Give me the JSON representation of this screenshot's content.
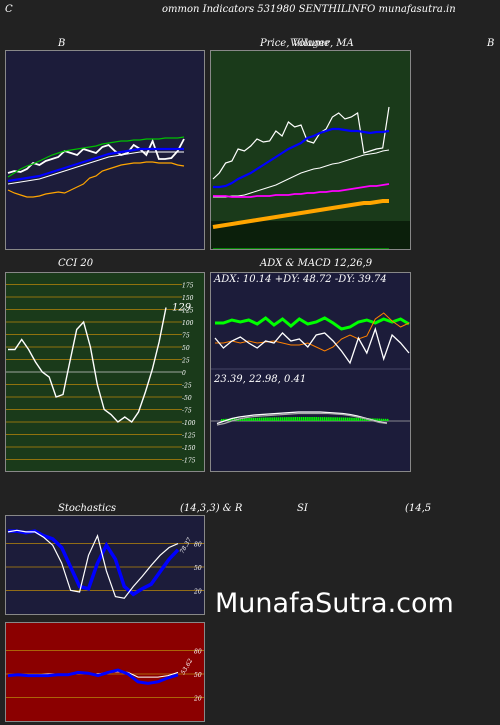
{
  "page": {
    "corner_letter": "C",
    "header": "ommon  Indicators 531980  SENTHILINFO munafasutra.in",
    "watermark": "MunafaSutra.com"
  },
  "colors": {
    "bg": "#222222",
    "navy": "#1c1c3a",
    "green_panel": "#1a3a1a",
    "red_panel": "#8b0000"
  },
  "chart_data": [
    {
      "type": "line",
      "id": "bollinger",
      "title": "B",
      "series": [
        {
          "color": "#ffffff",
          "values": [
            172,
            170,
            171,
            168,
            162,
            164,
            160,
            158,
            156,
            150,
            152,
            154,
            148,
            150,
            152,
            146,
            144,
            150,
            154,
            152,
            144,
            148,
            154,
            140,
            158,
            158,
            157,
            150,
            138
          ]
        },
        {
          "color": "#00c000",
          "values": [
            176,
            172,
            168,
            165,
            163,
            160,
            157,
            154,
            152,
            150,
            149,
            148,
            147,
            146,
            145,
            143,
            142,
            141,
            140,
            140,
            139,
            139,
            138,
            138,
            138,
            137,
            137,
            137,
            136
          ]
        },
        {
          "color": "#0000ff",
          "values": [
            180,
            179,
            178,
            177,
            176,
            175,
            173,
            171,
            169,
            167,
            165,
            163,
            161,
            159,
            157,
            155,
            153,
            152,
            151,
            150,
            149,
            148,
            148,
            148,
            148,
            148,
            148,
            148,
            148
          ]
        },
        {
          "color": "#ffffff",
          "values": [
            183,
            182,
            181,
            180,
            179,
            178,
            176,
            174,
            172,
            170,
            168,
            166,
            164,
            162,
            160,
            158,
            156,
            155,
            154,
            153,
            152,
            151,
            151,
            151,
            151,
            151,
            151,
            151,
            151
          ]
        },
        {
          "color": "#ffa500",
          "values": [
            189,
            192,
            194,
            196,
            196,
            195,
            193,
            192,
            191,
            192,
            189,
            186,
            183,
            177,
            175,
            170,
            168,
            166,
            164,
            163,
            162,
            162,
            161,
            161,
            162,
            162,
            162,
            164,
            165
          ]
        }
      ]
    },
    {
      "type": "line",
      "id": "price-volume-ma",
      "title": "Price,  Volume,  MA",
      "overlay_title": "Villager",
      "series": [
        {
          "color": "#ffffff",
          "values": [
            178,
            172,
            162,
            160,
            148,
            150,
            145,
            138,
            141,
            140,
            130,
            135,
            121,
            126,
            124,
            140,
            142,
            132,
            128,
            116,
            112,
            118,
            116,
            112,
            152,
            150,
            148,
            147,
            106
          ]
        },
        {
          "color": "#0000ff",
          "values": [
            186,
            186,
            185,
            182,
            178,
            175,
            172,
            168,
            164,
            160,
            156,
            152,
            148,
            145,
            142,
            137,
            135,
            132,
            130,
            128,
            128,
            129,
            130,
            130,
            131,
            132,
            131,
            131,
            130
          ]
        },
        {
          "color": "#ffffff",
          "values": [
            196,
            196,
            196,
            195,
            195,
            194,
            192,
            190,
            188,
            186,
            184,
            181,
            178,
            175,
            172,
            170,
            168,
            167,
            165,
            163,
            162,
            160,
            158,
            156,
            154,
            153,
            152,
            150,
            149
          ]
        },
        {
          "color": "#ff00ff",
          "values": [
            195,
            195,
            195,
            196,
            196,
            196,
            196,
            195,
            195,
            195,
            194,
            194,
            194,
            193,
            193,
            192,
            192,
            191,
            191,
            190,
            190,
            189,
            188,
            187,
            186,
            185,
            185,
            184,
            183
          ]
        },
        {
          "color": "#ffa500",
          "values": [
            226,
            225,
            224,
            223,
            222,
            221,
            220,
            219,
            218,
            217,
            216,
            215,
            214,
            213,
            212,
            211,
            210,
            209,
            208,
            207,
            206,
            205,
            204,
            203,
            202,
            202,
            201,
            200,
            200
          ]
        },
        {
          "color": "#00c000",
          "values": [
            248,
            248,
            248,
            248,
            248,
            248,
            248,
            248,
            248,
            248,
            248,
            248,
            248,
            248,
            248,
            248,
            248,
            248,
            248,
            248,
            248,
            248,
            248,
            248,
            248,
            248,
            248,
            248,
            248
          ]
        }
      ]
    },
    {
      "type": "line",
      "id": "cci",
      "title": "CCI 20",
      "ticks": [
        "175",
        "150",
        "125",
        "100",
        "75",
        "50",
        "25",
        "0",
        "-25",
        "-50",
        "-75",
        "-100",
        "-125",
        "-150",
        "-175"
      ],
      "current_label": "129",
      "series": [
        {
          "color": "#ffffff",
          "values": [
            45,
            45,
            65,
            45,
            20,
            0,
            -10,
            -50,
            -45,
            20,
            85,
            100,
            50,
            -25,
            -75,
            -85,
            -100,
            -90,
            -100,
            -80,
            -40,
            5,
            60,
            129
          ]
        }
      ]
    },
    {
      "type": "line",
      "id": "adx",
      "title": "ADX  & MACD 12,26,9",
      "subtitle": "ADX: 10.14  +DY: 48.72  -DY: 39.74",
      "series": [
        {
          "name": "+DY",
          "color": "#00ff00",
          "values": [
            100,
            100,
            103,
            101,
            103,
            99,
            105,
            98,
            104,
            97,
            104,
            99,
            101,
            105,
            100,
            94,
            96,
            101,
            103,
            100,
            104,
            101,
            104,
            99
          ]
        },
        {
          "name": "-DY",
          "color": "#ff8000",
          "values": [
            80,
            80,
            82,
            80,
            82,
            80,
            81,
            82,
            80,
            78,
            78,
            80,
            76,
            72,
            76,
            84,
            88,
            84,
            87,
            104,
            110,
            102,
            96,
            100
          ]
        },
        {
          "name": "ADX",
          "color": "#ffffff",
          "values": [
            85,
            75,
            82,
            86,
            80,
            75,
            82,
            80,
            90,
            82,
            84,
            76,
            88,
            90,
            82,
            72,
            60,
            85,
            70,
            94,
            64,
            88,
            80,
            70
          ]
        }
      ],
      "macd_subtitle": "23.39,  22.98,  0.41",
      "macd_series": [
        {
          "color": "#ffffff",
          "values": [
            35,
            40,
            45,
            48,
            50,
            52,
            53,
            54,
            55,
            56,
            57,
            58,
            58,
            58,
            58,
            57,
            56,
            55,
            53,
            50,
            46,
            42,
            38,
            36
          ]
        },
        {
          "color": "#aaaaaa",
          "values": [
            32,
            35,
            40,
            44,
            47,
            49,
            50,
            51,
            52,
            53,
            54,
            55,
            55,
            55,
            55,
            55,
            54,
            53,
            51,
            48,
            45,
            41,
            37,
            35
          ]
        }
      ]
    },
    {
      "type": "line",
      "id": "stochastics",
      "title": "Stochastics",
      "params": "(14,3,3) & R",
      "ticks": [
        "80",
        "50",
        "20"
      ],
      "current_label": "78.37",
      "series": [
        {
          "color": "#0000ff",
          "values": [
            96,
            96,
            94,
            96,
            90,
            86,
            75,
            50,
            25,
            22,
            55,
            78,
            60,
            25,
            15,
            22,
            28,
            44,
            60,
            72
          ]
        },
        {
          "color": "#ffffff",
          "values": [
            95,
            97,
            95,
            95,
            88,
            78,
            55,
            20,
            18,
            65,
            90,
            45,
            12,
            10,
            25,
            38,
            52,
            65,
            75,
            80
          ]
        }
      ]
    },
    {
      "type": "line",
      "id": "rsi",
      "title": "SI",
      "params": "(14,5",
      "ticks": [
        "80",
        "50",
        "20"
      ],
      "current_label": "53.62",
      "series": [
        {
          "color": "#0000ff",
          "values": [
            48,
            49,
            48,
            48,
            48,
            49,
            49,
            52,
            51,
            48,
            52,
            55,
            50,
            40,
            38,
            40,
            45,
            49
          ]
        },
        {
          "color": "#ffffff",
          "values": [
            49,
            49,
            49,
            49,
            50,
            50,
            50,
            52,
            50,
            50,
            52,
            53,
            52,
            46,
            46,
            46,
            48,
            52
          ]
        }
      ]
    }
  ]
}
